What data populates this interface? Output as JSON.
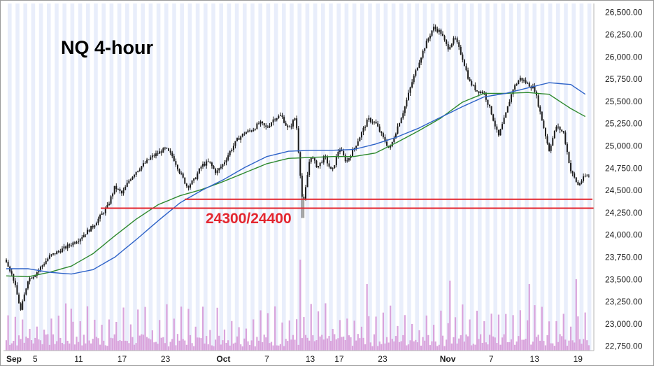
{
  "chart_data": {
    "type": "candlestick",
    "title": "NQ 4-hour",
    "annotation": "24300/24400",
    "y_ticks": [
      "26,500.00",
      "26,250.00",
      "26,000.00",
      "25,750.00",
      "25,500.00",
      "25,250.00",
      "25,000.00",
      "24,750.00",
      "24,500.00",
      "24,250.00",
      "24,000.00",
      "23,750.00",
      "23,500.00",
      "23,250.00",
      "23,000.00",
      "22,750.00"
    ],
    "y_tick_values": [
      26500,
      26250,
      26000,
      25750,
      25500,
      25250,
      25000,
      24750,
      24500,
      24250,
      24000,
      23750,
      23500,
      23250,
      23000,
      22750
    ],
    "ylim": [
      22700,
      26600
    ],
    "x_ticks": [
      {
        "label": "Sep",
        "bold": true,
        "day": 0
      },
      {
        "label": "5",
        "bold": false,
        "day": 4
      },
      {
        "label": "11",
        "bold": false,
        "day": 10
      },
      {
        "label": "17",
        "bold": false,
        "day": 16
      },
      {
        "label": "23",
        "bold": false,
        "day": 22
      },
      {
        "label": "Oct",
        "bold": true,
        "day": 30
      },
      {
        "label": "7",
        "bold": false,
        "day": 36
      },
      {
        "label": "13",
        "bold": false,
        "day": 42
      },
      {
        "label": "17",
        "bold": false,
        "day": 46
      },
      {
        "label": "23",
        "bold": false,
        "day": 52
      },
      {
        "label": "Nov",
        "bold": true,
        "day": 61
      },
      {
        "label": "7",
        "bold": false,
        "day": 67
      },
      {
        "label": "13",
        "bold": false,
        "day": 73
      },
      {
        "label": "19",
        "bold": false,
        "day": 79
      }
    ],
    "support_levels": [
      24300,
      24400
    ],
    "price_path": [
      [
        0,
        23720
      ],
      [
        1,
        23500
      ],
      [
        2,
        23150
      ],
      [
        3,
        23500
      ],
      [
        4,
        23560
      ],
      [
        6,
        23760
      ],
      [
        8,
        23850
      ],
      [
        10,
        23950
      ],
      [
        12,
        24100
      ],
      [
        14,
        24320
      ],
      [
        15,
        24540
      ],
      [
        16,
        24460
      ],
      [
        17,
        24620
      ],
      [
        18,
        24720
      ],
      [
        20,
        24870
      ],
      [
        22,
        24970
      ],
      [
        23,
        24880
      ],
      [
        24,
        24700
      ],
      [
        25,
        24540
      ],
      [
        26,
        24620
      ],
      [
        27,
        24780
      ],
      [
        28,
        24820
      ],
      [
        29,
        24700
      ],
      [
        30,
        24800
      ],
      [
        31,
        24950
      ],
      [
        32,
        25080
      ],
      [
        33,
        25150
      ],
      [
        34,
        25180
      ],
      [
        35,
        25260
      ],
      [
        36,
        25200
      ],
      [
        37,
        25310
      ],
      [
        38,
        25340
      ],
      [
        39,
        25180
      ],
      [
        40,
        25330
      ],
      [
        41,
        24300
      ],
      [
        42,
        24900
      ],
      [
        43,
        24760
      ],
      [
        44,
        24880
      ],
      [
        45,
        24700
      ],
      [
        46,
        24980
      ],
      [
        47,
        24820
      ],
      [
        48,
        24960
      ],
      [
        49,
        25130
      ],
      [
        50,
        25300
      ],
      [
        51,
        25260
      ],
      [
        52,
        25100
      ],
      [
        53,
        24960
      ],
      [
        54,
        25200
      ],
      [
        55,
        25420
      ],
      [
        56,
        25700
      ],
      [
        57,
        25940
      ],
      [
        58,
        26150
      ],
      [
        59,
        26330
      ],
      [
        60,
        26280
      ],
      [
        61,
        26100
      ],
      [
        62,
        26210
      ],
      [
        63,
        26000
      ],
      [
        64,
        25720
      ],
      [
        65,
        25620
      ],
      [
        66,
        25600
      ],
      [
        67,
        25380
      ],
      [
        68,
        25100
      ],
      [
        69,
        25350
      ],
      [
        70,
        25640
      ],
      [
        71,
        25760
      ],
      [
        72,
        25700
      ],
      [
        73,
        25640
      ],
      [
        74,
        25300
      ],
      [
        75,
        24950
      ],
      [
        76,
        25220
      ],
      [
        77,
        25150
      ],
      [
        78,
        24720
      ],
      [
        79,
        24560
      ],
      [
        80,
        24660
      ]
    ],
    "green_ma_path": [
      [
        0,
        23540
      ],
      [
        3,
        23530
      ],
      [
        6,
        23580
      ],
      [
        9,
        23650
      ],
      [
        12,
        23790
      ],
      [
        15,
        23990
      ],
      [
        18,
        24180
      ],
      [
        21,
        24340
      ],
      [
        24,
        24440
      ],
      [
        27,
        24510
      ],
      [
        30,
        24600
      ],
      [
        33,
        24700
      ],
      [
        36,
        24800
      ],
      [
        39,
        24860
      ],
      [
        42,
        24870
      ],
      [
        45,
        24880
      ],
      [
        48,
        24880
      ],
      [
        51,
        24920
      ],
      [
        54,
        25040
      ],
      [
        57,
        25170
      ],
      [
        60,
        25310
      ],
      [
        63,
        25490
      ],
      [
        66,
        25590
      ],
      [
        69,
        25590
      ],
      [
        72,
        25600
      ],
      [
        75,
        25580
      ],
      [
        78,
        25420
      ],
      [
        80,
        25330
      ]
    ],
    "blue_ma_path": [
      [
        0,
        23620
      ],
      [
        3,
        23620
      ],
      [
        6,
        23580
      ],
      [
        9,
        23560
      ],
      [
        12,
        23610
      ],
      [
        15,
        23750
      ],
      [
        18,
        23950
      ],
      [
        21,
        24160
      ],
      [
        24,
        24360
      ],
      [
        27,
        24500
      ],
      [
        30,
        24620
      ],
      [
        33,
        24760
      ],
      [
        36,
        24880
      ],
      [
        39,
        24940
      ],
      [
        42,
        24950
      ],
      [
        45,
        24950
      ],
      [
        48,
        24960
      ],
      [
        51,
        25020
      ],
      [
        54,
        25100
      ],
      [
        57,
        25200
      ],
      [
        60,
        25320
      ],
      [
        63,
        25440
      ],
      [
        66,
        25550
      ],
      [
        69,
        25590
      ],
      [
        72,
        25650
      ],
      [
        75,
        25710
      ],
      [
        78,
        25690
      ],
      [
        80,
        25580
      ]
    ],
    "colors": {
      "candle": "#1a1a1a",
      "green_ma": "#2f8a2f",
      "blue_ma": "#2e63c8",
      "level": "#e3262f",
      "volume": "#d9a3dc",
      "stripe": "#e9eefb"
    }
  }
}
